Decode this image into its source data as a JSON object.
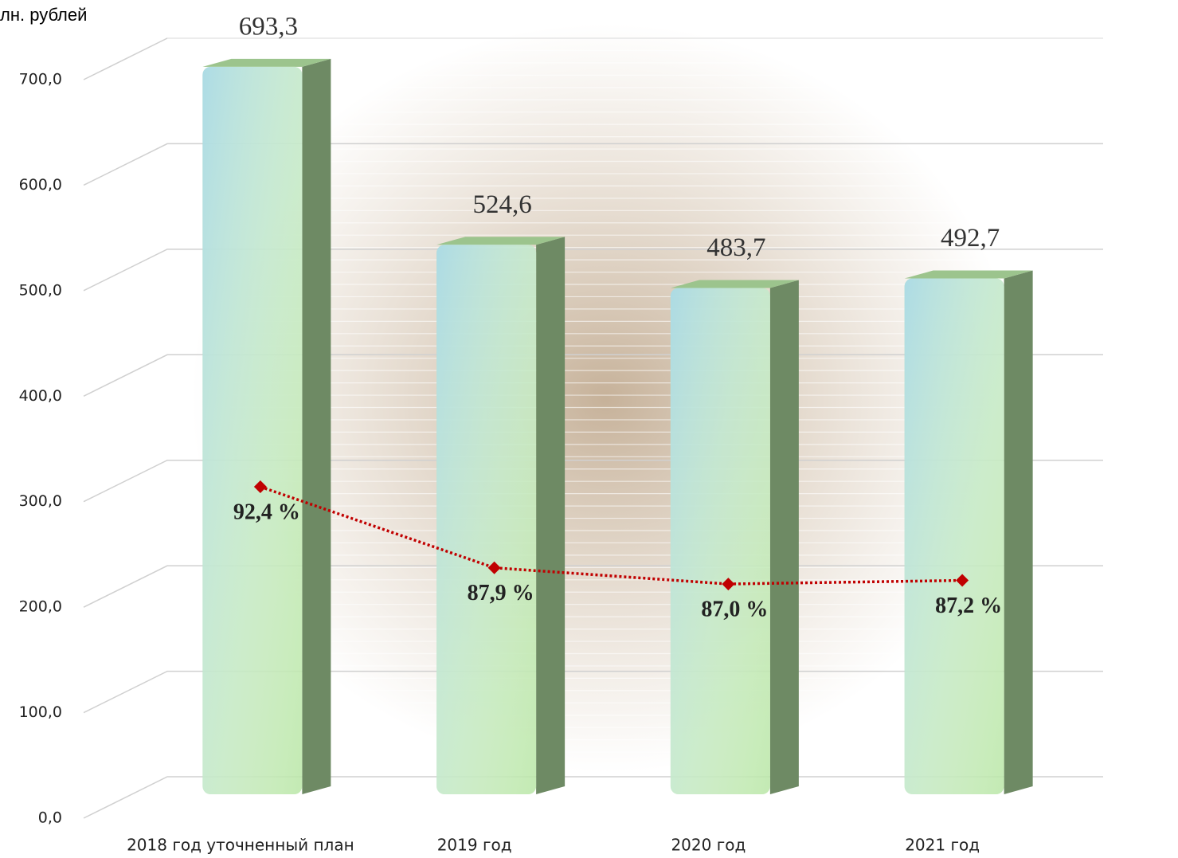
{
  "chart_data": {
    "type": "bar",
    "y_axis_label": "лн. рублей",
    "categories": [
      "2018 год уточненный план",
      "2019 год",
      "2020 год",
      "2021 год"
    ],
    "series": [
      {
        "type": "bar",
        "color": "#b8e6a6",
        "values": [
          693.3,
          524.6,
          483.7,
          492.7
        ],
        "value_labels": [
          "693,3",
          "524,6",
          "483,7",
          "492,7"
        ]
      },
      {
        "type": "line",
        "axis": "y2",
        "color": "#c00000",
        "values": [
          92.4,
          87.9,
          87.0,
          87.2
        ],
        "value_labels": [
          "92,4 %",
          "87,9 %",
          "87,0 %",
          "87,2 %"
        ]
      }
    ],
    "ylim": [
      0,
      700
    ],
    "yticks": [
      {
        "value": 0,
        "label": "0,0"
      },
      {
        "value": 100,
        "label": "100,0"
      },
      {
        "value": 200,
        "label": "200,0"
      },
      {
        "value": 300,
        "label": "300,0"
      },
      {
        "value": 400,
        "label": "400,0"
      },
      {
        "value": 500,
        "label": "500,0"
      },
      {
        "value": 600,
        "label": "600,0"
      },
      {
        "value": 700,
        "label": "700,0"
      }
    ],
    "y2lim": [
      74,
      115
    ],
    "grid": true
  }
}
